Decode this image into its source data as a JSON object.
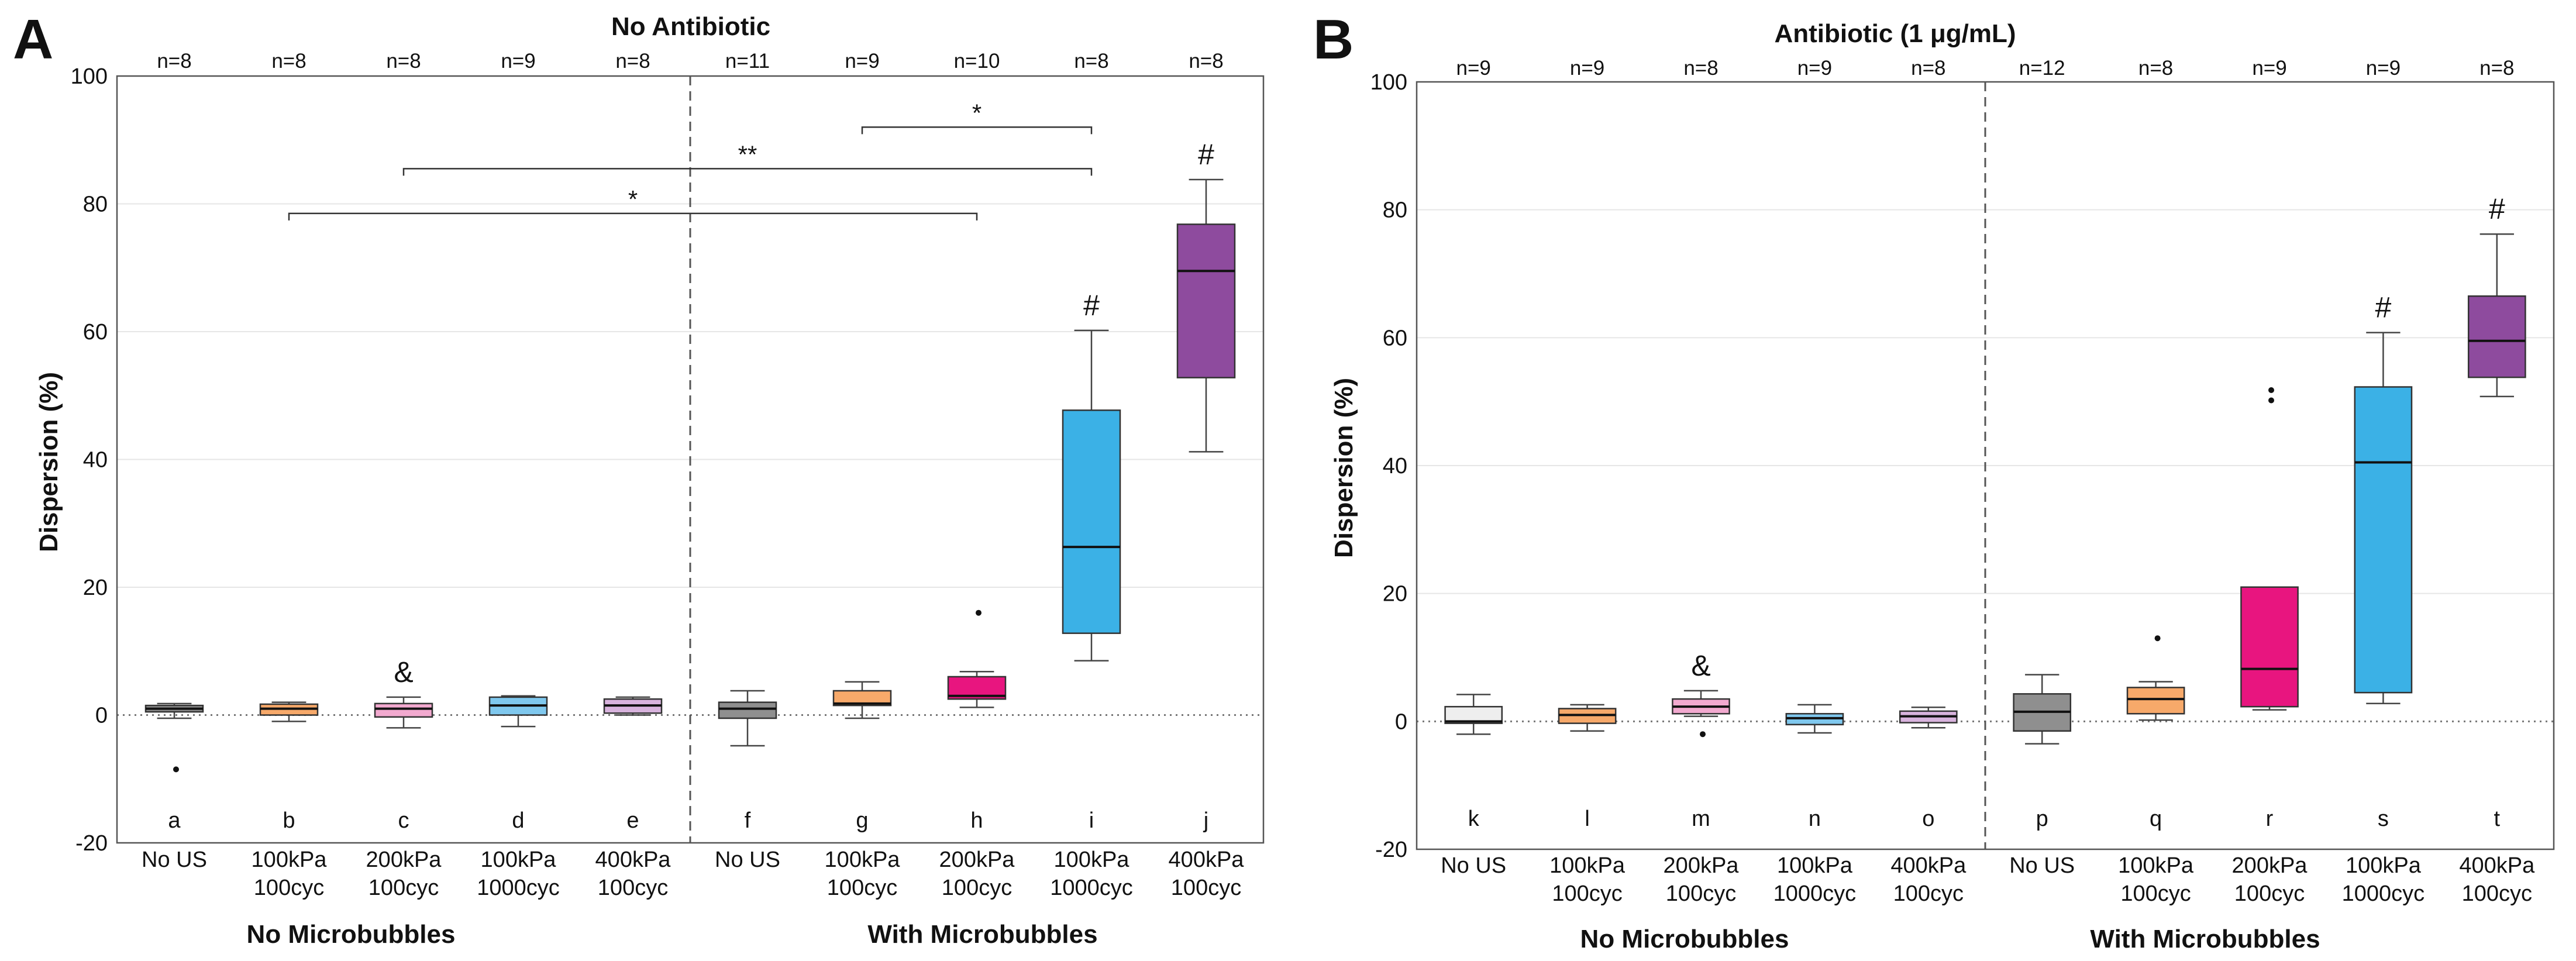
{
  "chart_data": [
    {
      "type": "box",
      "panel": "A",
      "title": "No Antibiotic",
      "ylabel": "Dispersion  (%)",
      "ylim": [
        -20,
        100
      ],
      "yticks": [
        -20,
        0,
        20,
        40,
        60,
        80,
        100
      ],
      "groups": [
        "No Microbubbles",
        "With Microbubbles"
      ],
      "categories": [
        {
          "line1": "No US",
          "line2": "",
          "letter": "a",
          "n": "n=8",
          "color": "#8f8f8f",
          "min": -0.5,
          "q1": 0.5,
          "median": 1,
          "q3": 1.5,
          "max": 1.8,
          "outliers": [
            -8.5
          ],
          "mark": ""
        },
        {
          "line1": "100kPa",
          "line2": "100cyc",
          "letter": "b",
          "n": "n=8",
          "color": "#f7a96a",
          "min": -1,
          "q1": 0,
          "median": 1,
          "q3": 1.7,
          "max": 2,
          "outliers": [],
          "mark": ""
        },
        {
          "line1": "200kPa",
          "line2": "100cyc",
          "letter": "c",
          "n": "n=8",
          "color": "#f2a9cf",
          "min": -2,
          "q1": -0.3,
          "median": 1,
          "q3": 1.8,
          "max": 2.8,
          "outliers": [],
          "mark": "&"
        },
        {
          "line1": "100kPa",
          "line2": "1000cyc",
          "letter": "d",
          "n": "n=9",
          "color": "#7fc8ee",
          "min": -1.8,
          "q1": 0,
          "median": 1.5,
          "q3": 2.8,
          "max": 3,
          "outliers": [],
          "mark": ""
        },
        {
          "line1": "400kPa",
          "line2": "100cyc",
          "letter": "e",
          "n": "n=8",
          "color": "#d8b3dd",
          "min": 0,
          "q1": 0.3,
          "median": 1.5,
          "q3": 2.5,
          "max": 2.8,
          "outliers": [],
          "mark": ""
        },
        {
          "line1": "No US",
          "line2": "",
          "letter": "f",
          "n": "n=11",
          "color": "#8f8f8f",
          "min": -4.8,
          "q1": -0.5,
          "median": 1,
          "q3": 2,
          "max": 3.8,
          "outliers": [],
          "mark": ""
        },
        {
          "line1": "100kPa",
          "line2": "100cyc",
          "letter": "g",
          "n": "n=9",
          "color": "#f7a96a",
          "min": -0.5,
          "q1": 1.5,
          "median": 1.8,
          "q3": 3.8,
          "max": 5.2,
          "outliers": [],
          "mark": ""
        },
        {
          "line1": "200kPa",
          "line2": "100cyc",
          "letter": "h",
          "n": "n=10",
          "color": "#e8157f",
          "min": 1.2,
          "q1": 2.5,
          "median": 3,
          "q3": 6,
          "max": 6.8,
          "outliers": [
            16
          ],
          "mark": ""
        },
        {
          "line1": "100kPa",
          "line2": "1000cyc",
          "letter": "i",
          "n": "n=8",
          "color": "#3bb1e6",
          "min": 8.5,
          "q1": 12.8,
          "median": 26.3,
          "q3": 47.7,
          "max": 60.2,
          "outliers": [],
          "mark": "#"
        },
        {
          "line1": "400kPa",
          "line2": "100cyc",
          "letter": "j",
          "n": "n=8",
          "color": "#8e4b9e",
          "min": 41.2,
          "q1": 52.8,
          "median": 69.5,
          "q3": 76.8,
          "max": 83.8,
          "outliers": [],
          "mark": "#"
        }
      ],
      "significance": [
        {
          "from": 2,
          "to": 8,
          "y": 78.5,
          "label": "*"
        },
        {
          "from": 3,
          "to": 9,
          "y": 85.5,
          "label": "**"
        },
        {
          "from": 7,
          "to": 9,
          "y": 92,
          "label": "*"
        }
      ]
    },
    {
      "type": "box",
      "panel": "B",
      "title": "Antibiotic (1 μg/mL)",
      "ylabel": "Dispersion (%)",
      "ylim": [
        -20,
        100
      ],
      "yticks": [
        -20,
        0,
        20,
        40,
        60,
        80,
        100
      ],
      "groups": [
        "No Microbubbles",
        "With Microbubbles"
      ],
      "categories": [
        {
          "line1": "No US",
          "line2": "",
          "letter": "k",
          "n": "n=9",
          "color": "#eeeeee",
          "min": -2,
          "q1": -0.3,
          "median": 0,
          "q3": 2.3,
          "max": 4.2,
          "outliers": [],
          "mark": ""
        },
        {
          "line1": "100kPa",
          "line2": "100cyc",
          "letter": "l",
          "n": "n=9",
          "color": "#f7a96a",
          "min": -1.5,
          "q1": -0.3,
          "median": 1,
          "q3": 2,
          "max": 2.6,
          "outliers": [],
          "mark": ""
        },
        {
          "line1": "200kPa",
          "line2": "100cyc",
          "letter": "m",
          "n": "n=8",
          "color": "#f2a9cf",
          "min": 0.8,
          "q1": 1.2,
          "median": 2.3,
          "q3": 3.5,
          "max": 4.8,
          "outliers": [
            -2
          ],
          "mark": "&"
        },
        {
          "line1": "100kPa",
          "line2": "1000cyc",
          "letter": "n",
          "n": "n=9",
          "color": "#7fc8ee",
          "min": -1.8,
          "q1": -0.5,
          "median": 0.5,
          "q3": 1.2,
          "max": 2.6,
          "outliers": [],
          "mark": ""
        },
        {
          "line1": "400kPa",
          "line2": "100cyc",
          "letter": "o",
          "n": "n=8",
          "color": "#d8b3dd",
          "min": -1,
          "q1": -0.2,
          "median": 0.8,
          "q3": 1.6,
          "max": 2.2,
          "outliers": [],
          "mark": ""
        },
        {
          "line1": "No US",
          "line2": "",
          "letter": "p",
          "n": "n=12",
          "color": "#8f8f8f",
          "min": -3.5,
          "q1": -1.5,
          "median": 1.5,
          "q3": 4.3,
          "max": 7.3,
          "outliers": [],
          "mark": ""
        },
        {
          "line1": "100kPa",
          "line2": "100cyc",
          "letter": "q",
          "n": "n=8",
          "color": "#f7a96a",
          "min": 0.2,
          "q1": 1.2,
          "median": 3.5,
          "q3": 5.3,
          "max": 6.2,
          "outliers": [
            13
          ],
          "mark": ""
        },
        {
          "line1": "200kPa",
          "line2": "100cyc",
          "letter": "r",
          "n": "n=9",
          "color": "#e8157f",
          "min": 1.8,
          "q1": 2.3,
          "median": 8.2,
          "q3": 21,
          "max": 21,
          "outliers": [
            50.2,
            51.8
          ],
          "mark": ""
        },
        {
          "line1": "100kPa",
          "line2": "1000cyc",
          "letter": "s",
          "n": "n=9",
          "color": "#3bb1e6",
          "min": 2.8,
          "q1": 4.5,
          "median": 40.5,
          "q3": 52.3,
          "max": 60.8,
          "outliers": [],
          "mark": "#"
        },
        {
          "line1": "400kPa",
          "line2": "100cyc",
          "letter": "t",
          "n": "n=8",
          "color": "#8e4b9e",
          "min": 50.8,
          "q1": 53.8,
          "median": 59.5,
          "q3": 66.5,
          "max": 76.2,
          "outliers": [],
          "mark": "#"
        }
      ],
      "significance": []
    }
  ]
}
